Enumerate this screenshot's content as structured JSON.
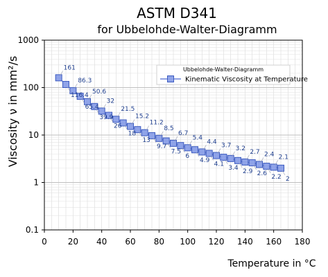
{
  "chart_data": {
    "type": "line",
    "title": "ASTM D341",
    "subtitle": "for Ubbelohde-Walter-Diagramm",
    "xlabel": "Temperature in °C",
    "ylabel": "Viscosity  ν in mm²/s",
    "y_scale": "log",
    "xlim": [
      0,
      180
    ],
    "ylim": [
      0.1,
      1000
    ],
    "x_ticks": [
      "0",
      "20",
      "40",
      "60",
      "80",
      "100",
      "120",
      "140",
      "160",
      "180"
    ],
    "y_ticks": [
      "0.1",
      "1",
      "10",
      "100",
      "1000"
    ],
    "grid": true,
    "legend": {
      "title": "Ubbelohde-Walter-Diagramm",
      "position": "top-right"
    },
    "colors": {
      "series": "#6b82d8",
      "marker_fill": "#8fa3e8",
      "marker_edge": "#3c5bc0",
      "label": "#1f3f8f"
    },
    "series": [
      {
        "name": "Kinematic Viscosity at Temperature",
        "x": [
          10,
          15,
          20,
          25,
          30,
          35,
          40,
          45,
          50,
          55,
          60,
          65,
          70,
          75,
          80,
          85,
          90,
          95,
          100,
          105,
          110,
          115,
          120,
          125,
          130,
          135,
          140,
          145,
          150,
          155,
          160,
          165
        ],
        "y": [
          161,
          116.4,
          86.3,
          65.4,
          50.6,
          39.9,
          32,
          26,
          21.5,
          18,
          15.2,
          13,
          11.2,
          9.7,
          8.5,
          7.5,
          6.7,
          6,
          5.4,
          4.9,
          4.4,
          4.1,
          3.7,
          3.4,
          3.2,
          2.9,
          2.7,
          2.6,
          2.4,
          2.2,
          2.1,
          2
        ],
        "labels": [
          "161",
          "116.4",
          "86.3",
          "65.4",
          "50.6",
          "39.9",
          "32",
          "26",
          "21.5",
          "18",
          "15.2",
          "13",
          "11.2",
          "9.7",
          "8.5",
          "7.5",
          "6.7",
          "6",
          "5.4",
          "4.9",
          "4.4",
          "4.1",
          "3.7",
          "3.4",
          "3.2",
          "2.9",
          "2.7",
          "2.6",
          "2.4",
          "2.2",
          "2.1",
          "2"
        ]
      }
    ]
  }
}
